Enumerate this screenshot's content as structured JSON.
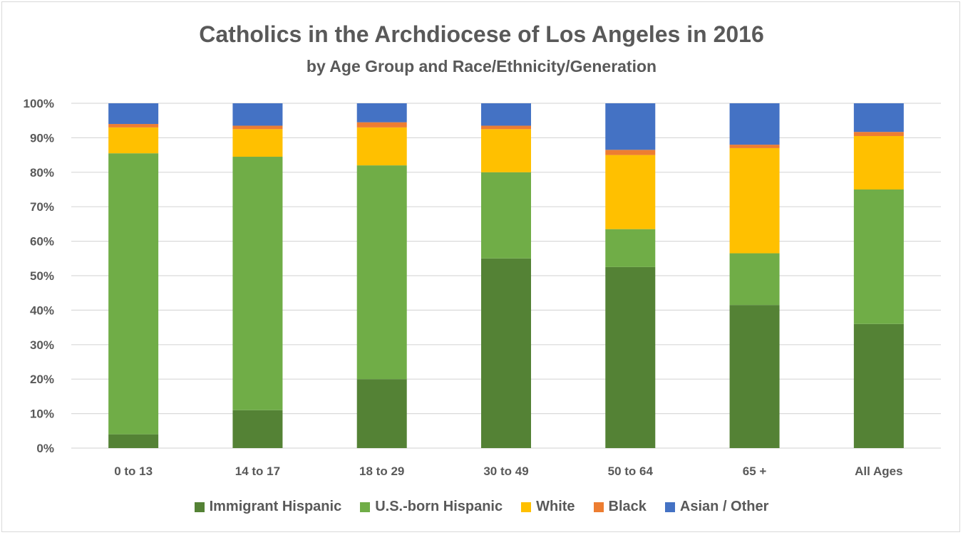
{
  "chart_data": {
    "type": "bar",
    "stacked": true,
    "title": "Catholics in the Archdiocese of Los Angeles in 2016",
    "subtitle": "by Age Group and Race/Ethnicity/Generation",
    "categories": [
      "0 to 13",
      "14 to 17",
      "18 to 29",
      "30 to 49",
      "50 to 64",
      "65 +",
      "All Ages"
    ],
    "ylim": [
      0,
      100
    ],
    "yticks": [
      "0%",
      "10%",
      "20%",
      "30%",
      "40%",
      "50%",
      "60%",
      "70%",
      "80%",
      "90%",
      "100%"
    ],
    "grid": true,
    "legend_position": "bottom",
    "series": [
      {
        "name": "Immigrant Hispanic",
        "color": "#548235",
        "values": [
          4,
          11,
          20,
          55,
          52.5,
          41.5,
          36
        ]
      },
      {
        "name": "U.S.-born Hispanic",
        "color": "#70AD47",
        "values": [
          81.5,
          73.5,
          62,
          25,
          11,
          15,
          39
        ]
      },
      {
        "name": "White",
        "color": "#FFC000",
        "values": [
          7.5,
          8,
          11,
          12.5,
          21.5,
          30.5,
          15.5
        ]
      },
      {
        "name": "Black",
        "color": "#ED7D31",
        "values": [
          1,
          1,
          1.5,
          1,
          1.5,
          1,
          1.2
        ]
      },
      {
        "name": "Asian / Other",
        "color": "#4472C4",
        "values": [
          6,
          6.5,
          5.5,
          6.5,
          13.5,
          12,
          8.3
        ]
      }
    ]
  }
}
